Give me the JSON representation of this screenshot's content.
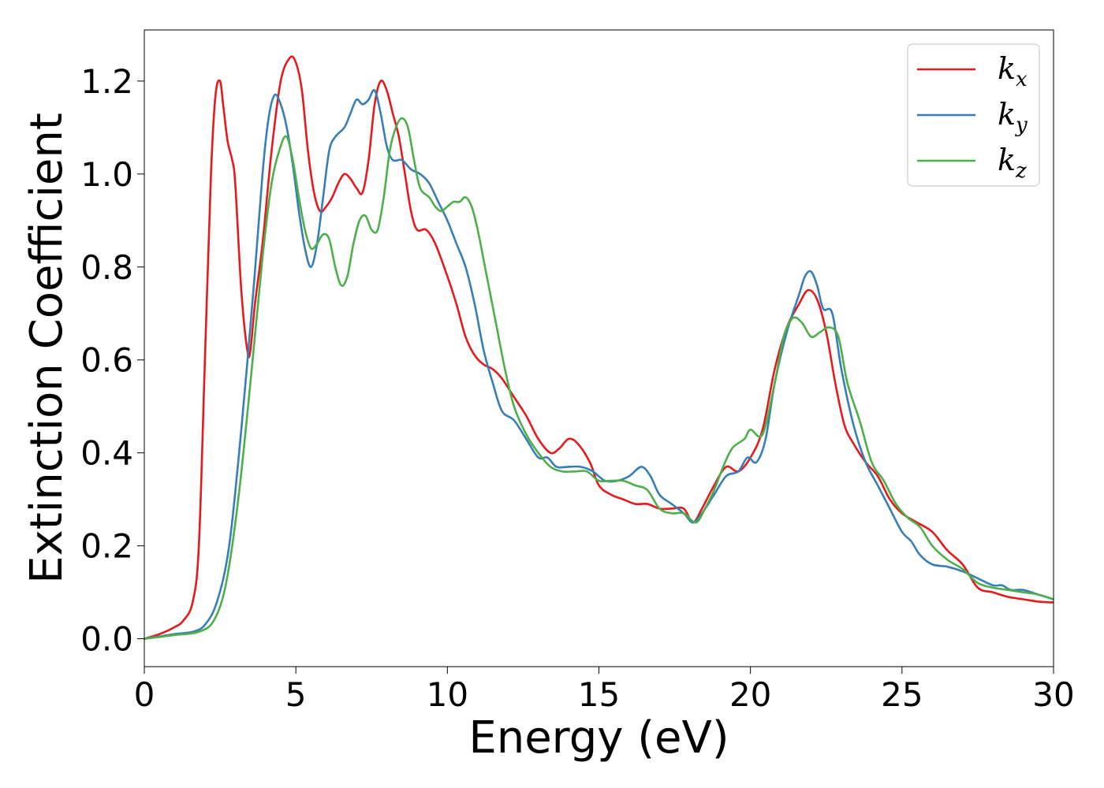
{
  "chart_data": {
    "type": "line",
    "title": "",
    "xlabel": "Energy (eV)",
    "ylabel": "Extinction Coefficient",
    "xlim": [
      0,
      30
    ],
    "ylim": [
      -0.06,
      1.31
    ],
    "xticks": [
      0,
      5,
      10,
      15,
      20,
      25,
      30
    ],
    "xtick_labels": [
      "0",
      "5",
      "10",
      "15",
      "20",
      "25",
      "30"
    ],
    "yticks": [
      0.0,
      0.2,
      0.4,
      0.6,
      0.8,
      1.0,
      1.2
    ],
    "ytick_labels": [
      "0.0",
      "0.2",
      "0.4",
      "0.6",
      "0.8",
      "1.0",
      "1.2"
    ],
    "grid": false,
    "legend_position": "top-right",
    "series": [
      {
        "name": "k_x",
        "legend_base": "k",
        "legend_sub": "x",
        "color": "#e41a1c",
        "points": [
          [
            0,
            0
          ],
          [
            0.5,
            0.01
          ],
          [
            1.0,
            0.025
          ],
          [
            1.3,
            0.04
          ],
          [
            1.6,
            0.08
          ],
          [
            1.8,
            0.2
          ],
          [
            2.0,
            0.6
          ],
          [
            2.2,
            1.0
          ],
          [
            2.35,
            1.17
          ],
          [
            2.5,
            1.2
          ],
          [
            2.6,
            1.15
          ],
          [
            2.75,
            1.07
          ],
          [
            2.9,
            1.03
          ],
          [
            3.0,
            0.98
          ],
          [
            3.2,
            0.75
          ],
          [
            3.4,
            0.62
          ],
          [
            3.5,
            0.62
          ],
          [
            3.65,
            0.72
          ],
          [
            3.9,
            0.85
          ],
          [
            4.2,
            1.05
          ],
          [
            4.5,
            1.2
          ],
          [
            4.8,
            1.25
          ],
          [
            5.0,
            1.24
          ],
          [
            5.2,
            1.18
          ],
          [
            5.4,
            1.05
          ],
          [
            5.6,
            0.96
          ],
          [
            5.8,
            0.92
          ],
          [
            6.0,
            0.93
          ],
          [
            6.2,
            0.95
          ],
          [
            6.4,
            0.98
          ],
          [
            6.6,
            1.0
          ],
          [
            6.8,
            0.99
          ],
          [
            7.0,
            0.97
          ],
          [
            7.2,
            0.96
          ],
          [
            7.4,
            1.03
          ],
          [
            7.6,
            1.15
          ],
          [
            7.8,
            1.2
          ],
          [
            8.0,
            1.18
          ],
          [
            8.2,
            1.13
          ],
          [
            8.4,
            1.08
          ],
          [
            8.6,
            1.0
          ],
          [
            8.8,
            0.92
          ],
          [
            9.0,
            0.88
          ],
          [
            9.3,
            0.88
          ],
          [
            9.6,
            0.85
          ],
          [
            10.0,
            0.78
          ],
          [
            10.3,
            0.72
          ],
          [
            10.6,
            0.65
          ],
          [
            10.9,
            0.61
          ],
          [
            11.2,
            0.59
          ],
          [
            11.5,
            0.58
          ],
          [
            11.8,
            0.56
          ],
          [
            12.2,
            0.52
          ],
          [
            12.6,
            0.48
          ],
          [
            13.0,
            0.43
          ],
          [
            13.4,
            0.4
          ],
          [
            13.7,
            0.41
          ],
          [
            14.0,
            0.43
          ],
          [
            14.3,
            0.42
          ],
          [
            14.7,
            0.38
          ],
          [
            15.0,
            0.33
          ],
          [
            15.4,
            0.31
          ],
          [
            15.8,
            0.3
          ],
          [
            16.2,
            0.29
          ],
          [
            16.6,
            0.29
          ],
          [
            17.0,
            0.28
          ],
          [
            17.4,
            0.28
          ],
          [
            17.8,
            0.28
          ],
          [
            18.1,
            0.25
          ],
          [
            18.4,
            0.28
          ],
          [
            18.8,
            0.33
          ],
          [
            19.2,
            0.37
          ],
          [
            19.6,
            0.36
          ],
          [
            20.0,
            0.39
          ],
          [
            20.4,
            0.45
          ],
          [
            20.8,
            0.58
          ],
          [
            21.2,
            0.67
          ],
          [
            21.6,
            0.72
          ],
          [
            21.9,
            0.75
          ],
          [
            22.2,
            0.73
          ],
          [
            22.5,
            0.66
          ],
          [
            22.8,
            0.55
          ],
          [
            23.1,
            0.46
          ],
          [
            23.4,
            0.42
          ],
          [
            23.8,
            0.38
          ],
          [
            24.2,
            0.35
          ],
          [
            24.6,
            0.3
          ],
          [
            25.0,
            0.27
          ],
          [
            25.5,
            0.25
          ],
          [
            26.0,
            0.23
          ],
          [
            26.5,
            0.19
          ],
          [
            27.0,
            0.16
          ],
          [
            27.5,
            0.11
          ],
          [
            28.0,
            0.1
          ],
          [
            28.5,
            0.09
          ],
          [
            29.0,
            0.085
          ],
          [
            29.5,
            0.08
          ],
          [
            30.0,
            0.078
          ]
        ]
      },
      {
        "name": "k_y",
        "legend_base": "k",
        "legend_sub": "y",
        "color": "#377eb8",
        "points": [
          [
            0,
            0
          ],
          [
            1.0,
            0.01
          ],
          [
            1.6,
            0.015
          ],
          [
            2.0,
            0.03
          ],
          [
            2.4,
            0.08
          ],
          [
            2.8,
            0.2
          ],
          [
            3.2,
            0.45
          ],
          [
            3.6,
            0.75
          ],
          [
            3.9,
            1.0
          ],
          [
            4.1,
            1.12
          ],
          [
            4.3,
            1.17
          ],
          [
            4.5,
            1.15
          ],
          [
            4.7,
            1.1
          ],
          [
            4.9,
            1.02
          ],
          [
            5.1,
            0.92
          ],
          [
            5.3,
            0.84
          ],
          [
            5.5,
            0.8
          ],
          [
            5.7,
            0.85
          ],
          [
            5.9,
            0.95
          ],
          [
            6.1,
            1.05
          ],
          [
            6.3,
            1.08
          ],
          [
            6.6,
            1.1
          ],
          [
            6.8,
            1.13
          ],
          [
            7.0,
            1.16
          ],
          [
            7.2,
            1.15
          ],
          [
            7.4,
            1.16
          ],
          [
            7.6,
            1.18
          ],
          [
            7.8,
            1.13
          ],
          [
            8.0,
            1.06
          ],
          [
            8.2,
            1.03
          ],
          [
            8.5,
            1.03
          ],
          [
            8.8,
            1.01
          ],
          [
            9.1,
            1.0
          ],
          [
            9.4,
            0.98
          ],
          [
            9.7,
            0.94
          ],
          [
            10.0,
            0.9
          ],
          [
            10.3,
            0.85
          ],
          [
            10.6,
            0.8
          ],
          [
            10.9,
            0.72
          ],
          [
            11.2,
            0.62
          ],
          [
            11.5,
            0.55
          ],
          [
            11.8,
            0.49
          ],
          [
            12.2,
            0.47
          ],
          [
            12.6,
            0.43
          ],
          [
            13.0,
            0.39
          ],
          [
            13.3,
            0.39
          ],
          [
            13.6,
            0.37
          ],
          [
            14.0,
            0.37
          ],
          [
            14.4,
            0.37
          ],
          [
            14.8,
            0.36
          ],
          [
            15.2,
            0.34
          ],
          [
            15.6,
            0.34
          ],
          [
            16.0,
            0.35
          ],
          [
            16.4,
            0.37
          ],
          [
            16.7,
            0.35
          ],
          [
            17.0,
            0.31
          ],
          [
            17.4,
            0.29
          ],
          [
            17.8,
            0.27
          ],
          [
            18.1,
            0.25
          ],
          [
            18.4,
            0.27
          ],
          [
            18.8,
            0.31
          ],
          [
            19.2,
            0.35
          ],
          [
            19.6,
            0.36
          ],
          [
            19.9,
            0.39
          ],
          [
            20.2,
            0.38
          ],
          [
            20.5,
            0.43
          ],
          [
            20.8,
            0.55
          ],
          [
            21.2,
            0.66
          ],
          [
            21.6,
            0.74
          ],
          [
            21.8,
            0.78
          ],
          [
            22.0,
            0.79
          ],
          [
            22.2,
            0.76
          ],
          [
            22.4,
            0.71
          ],
          [
            22.7,
            0.7
          ],
          [
            23.0,
            0.58
          ],
          [
            23.4,
            0.46
          ],
          [
            23.8,
            0.38
          ],
          [
            24.2,
            0.33
          ],
          [
            24.6,
            0.28
          ],
          [
            25.0,
            0.23
          ],
          [
            25.3,
            0.21
          ],
          [
            25.6,
            0.18
          ],
          [
            26.0,
            0.16
          ],
          [
            26.5,
            0.155
          ],
          [
            27.0,
            0.145
          ],
          [
            27.5,
            0.13
          ],
          [
            28.0,
            0.115
          ],
          [
            28.3,
            0.115
          ],
          [
            28.6,
            0.105
          ],
          [
            29.0,
            0.105
          ],
          [
            29.5,
            0.095
          ],
          [
            30.0,
            0.085
          ]
        ]
      },
      {
        "name": "k_z",
        "legend_base": "k",
        "legend_sub": "z",
        "color": "#4daf4a",
        "points": [
          [
            0,
            0
          ],
          [
            1.0,
            0.008
          ],
          [
            1.8,
            0.015
          ],
          [
            2.3,
            0.04
          ],
          [
            2.7,
            0.12
          ],
          [
            3.1,
            0.3
          ],
          [
            3.5,
            0.55
          ],
          [
            3.9,
            0.82
          ],
          [
            4.2,
            0.98
          ],
          [
            4.5,
            1.06
          ],
          [
            4.7,
            1.08
          ],
          [
            4.9,
            1.03
          ],
          [
            5.1,
            0.95
          ],
          [
            5.3,
            0.88
          ],
          [
            5.5,
            0.84
          ],
          [
            5.7,
            0.85
          ],
          [
            5.9,
            0.87
          ],
          [
            6.1,
            0.86
          ],
          [
            6.3,
            0.8
          ],
          [
            6.5,
            0.76
          ],
          [
            6.7,
            0.78
          ],
          [
            6.9,
            0.85
          ],
          [
            7.1,
            0.9
          ],
          [
            7.3,
            0.91
          ],
          [
            7.5,
            0.88
          ],
          [
            7.7,
            0.88
          ],
          [
            7.9,
            0.95
          ],
          [
            8.1,
            1.05
          ],
          [
            8.3,
            1.1
          ],
          [
            8.5,
            1.12
          ],
          [
            8.7,
            1.1
          ],
          [
            8.9,
            1.03
          ],
          [
            9.1,
            0.97
          ],
          [
            9.4,
            0.95
          ],
          [
            9.6,
            0.93
          ],
          [
            9.8,
            0.92
          ],
          [
            10.0,
            0.93
          ],
          [
            10.2,
            0.94
          ],
          [
            10.4,
            0.94
          ],
          [
            10.6,
            0.95
          ],
          [
            10.8,
            0.93
          ],
          [
            11.0,
            0.88
          ],
          [
            11.3,
            0.78
          ],
          [
            11.6,
            0.68
          ],
          [
            11.9,
            0.58
          ],
          [
            12.2,
            0.5
          ],
          [
            12.6,
            0.44
          ],
          [
            13.0,
            0.4
          ],
          [
            13.4,
            0.37
          ],
          [
            13.8,
            0.36
          ],
          [
            14.2,
            0.36
          ],
          [
            14.6,
            0.36
          ],
          [
            15.0,
            0.34
          ],
          [
            15.4,
            0.34
          ],
          [
            15.8,
            0.34
          ],
          [
            16.2,
            0.33
          ],
          [
            16.6,
            0.32
          ],
          [
            17.0,
            0.28
          ],
          [
            17.4,
            0.27
          ],
          [
            17.8,
            0.27
          ],
          [
            18.2,
            0.25
          ],
          [
            18.5,
            0.28
          ],
          [
            18.8,
            0.32
          ],
          [
            19.1,
            0.37
          ],
          [
            19.4,
            0.41
          ],
          [
            19.8,
            0.43
          ],
          [
            20.0,
            0.45
          ],
          [
            20.4,
            0.44
          ],
          [
            20.8,
            0.55
          ],
          [
            21.1,
            0.65
          ],
          [
            21.4,
            0.69
          ],
          [
            21.7,
            0.68
          ],
          [
            22.0,
            0.65
          ],
          [
            22.3,
            0.66
          ],
          [
            22.6,
            0.67
          ],
          [
            22.9,
            0.65
          ],
          [
            23.2,
            0.55
          ],
          [
            23.6,
            0.47
          ],
          [
            24.0,
            0.38
          ],
          [
            24.4,
            0.34
          ],
          [
            24.8,
            0.29
          ],
          [
            25.2,
            0.26
          ],
          [
            25.6,
            0.24
          ],
          [
            26.0,
            0.2
          ],
          [
            26.5,
            0.17
          ],
          [
            27.0,
            0.15
          ],
          [
            27.5,
            0.12
          ],
          [
            28.0,
            0.11
          ],
          [
            28.5,
            0.105
          ],
          [
            29.0,
            0.1
          ],
          [
            29.5,
            0.095
          ],
          [
            30.0,
            0.085
          ]
        ]
      }
    ]
  }
}
